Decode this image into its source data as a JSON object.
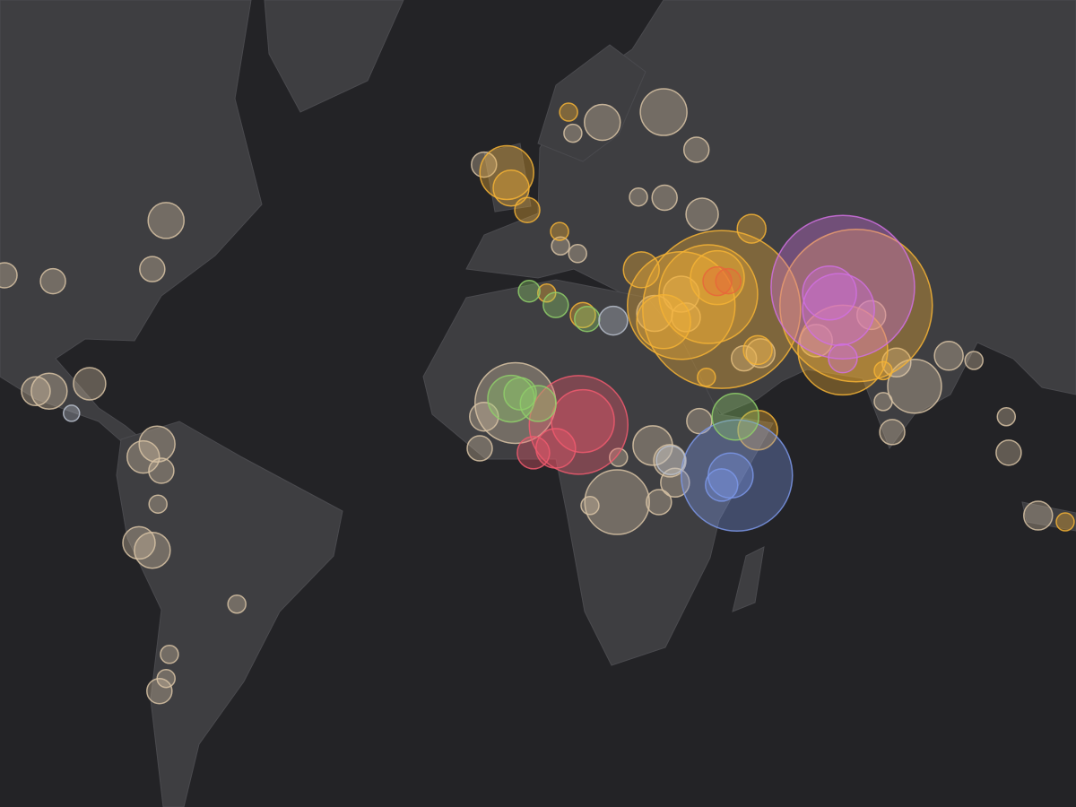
{
  "chart_data": {
    "type": "bubble_map",
    "series": [
      {
        "color": "#d8c3a5",
        "lon": [
          -106.6,
          -96.4,
          -72.6,
          -75.5,
          -100,
          -97.2,
          -88.7,
          -74.5,
          -77.4,
          -73.6,
          -74.3,
          -78.3,
          -75.5,
          -57.7,
          -71.9,
          -74,
          -72.6,
          -5.7,
          19.2,
          32.1,
          39,
          13,
          26.8,
          32.3,
          40.2,
          14,
          10.4,
          30.2,
          36.8,
          49,
          52.5,
          39.6,
          0.9,
          -5.7,
          -6.6,
          22.3,
          16.6,
          29.8,
          33.4,
          31.1,
          34.5,
          22.6,
          81.1,
          84.9,
          92.1,
          97.4,
          80.2,
          104.2,
          104.7,
          110.9,
          78.3,
          75.8,
          64.2,
          35.8
        ],
        "lat": [
          38,
          37,
          46.5,
          39,
          16.5,
          16.5,
          18,
          5.6,
          2.9,
          0,
          -7,
          -15,
          -16.5,
          -27,
          -36,
          -42,
          -40,
          54,
          58.9,
          60,
          55.8,
          57.7,
          49.8,
          49.7,
          47.4,
          41.5,
          42.7,
          31.4,
          30.7,
          23,
          24,
          10.4,
          14.1,
          11.3,
          4.7,
          -6.6,
          -7.3,
          5.3,
          2.1,
          -6.6,
          -2.5,
          2.8,
          22.2,
          17.5,
          23.5,
          22.6,
          8.1,
          11.3,
          3.8,
          -9.4,
          14.4,
          31.1,
          26.4,
          34.8
        ],
        "size": [
          196,
          196,
          400,
          196,
          256,
          400,
          324,
          400,
          324,
          196,
          100,
          324,
          400,
          100,
          100,
          196,
          100,
          196,
          400,
          676,
          196,
          100,
          100,
          196,
          324,
          100,
          100,
          400,
          256,
          196,
          256,
          196,
          2025,
          256,
          196,
          1296,
          100,
          484,
          324,
          196,
          256,
          100,
          256,
          900,
          256,
          100,
          196,
          100,
          196,
          256,
          100,
          256,
          324,
          400
        ]
      },
      {
        "color": "#f5b335",
        "lon": [
          44.3,
          72.6,
          35.8,
          41.5,
          69.8,
          -0.9,
          32.1,
          43.4,
          0,
          27.4,
          51.9,
          3.4,
          51.9,
          50.6,
          15.1,
          12.1,
          10.2,
          7.5,
          41.1,
          78.3,
          116.6
        ],
        "lat": [
          32.1,
          32.8,
          32.8,
          34.8,
          24.6,
          53,
          29.9,
          37.6,
          51,
          38.9,
          8.5,
          48,
          24.6,
          45.3,
          31.1,
          60,
          44.9,
          35,
          19.3,
          20.6,
          -10.7
        ],
        "size": [
          7744,
          7225,
          3600,
          3025,
          2500,
          900,
          900,
          900,
          400,
          400,
          484,
          196,
          256,
          256,
          196,
          100,
          100,
          100,
          100,
          100,
          100
        ]
      },
      {
        "color": "#d070e0",
        "lon": [
          69.8,
          68.9,
          67,
          69.8
        ],
        "lat": [
          36,
          32.1,
          35,
          23
        ],
        "size": [
          6400,
          1600,
          900,
          256
        ]
      },
      {
        "color": "#f05a6e",
        "lon": [
          14.2,
          15.1,
          9.4,
          4.7
        ],
        "lat": [
          9.6,
          10.4,
          4.7,
          3.8
        ],
        "size": [
          3025,
          1225,
          484,
          324
        ]
      },
      {
        "color": "#e8663a",
        "lon": [
          43.4,
          45.7
        ],
        "lat": [
          37,
          37
        ],
        "size": [
          256,
          196
        ]
      },
      {
        "color": "#7b97e8",
        "lon": [
          47.5,
          46.2,
          44.3
        ],
        "lat": [
          -1,
          -1,
          -3
        ],
        "size": [
          3844,
          625,
          324
        ]
      },
      {
        "color": "#8fcf6a",
        "lon": [
          0,
          1.9,
          5.7,
          47.2,
          3.8,
          9.4,
          16
        ],
        "lat": [
          15,
          16,
          14,
          11.3,
          35.3,
          32.9,
          30.4
        ],
        "size": [
          676,
          324,
          400,
          676,
          144,
          196,
          196
        ]
      },
      {
        "color": "#b9bfcc",
        "lon": [
          21.5,
          -92.5,
          33.6
        ],
        "lat": [
          30.1,
          12,
          2.2
        ],
        "size": [
          256,
          81,
          256
        ]
      }
    ]
  }
}
